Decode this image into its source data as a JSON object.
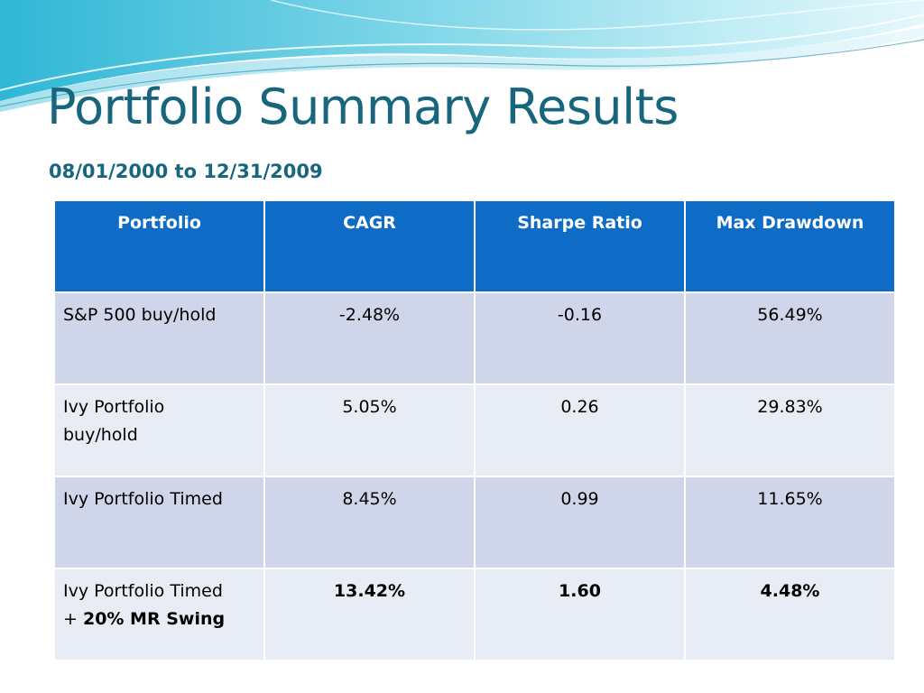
{
  "slide": {
    "title": "Portfolio Summary Results",
    "subtitle": "08/01/2000 to 12/31/2009"
  },
  "table": {
    "headers": [
      "Portfolio",
      "CAGR",
      "Sharpe Ratio",
      "Max Drawdown"
    ],
    "rows": [
      {
        "name": "S&P 500 buy/hold",
        "cagr": "-2.48%",
        "sharpe": "-0.16",
        "max_drawdown": "56.49%"
      },
      {
        "name_line1": "Ivy Portfolio",
        "name_line2": "buy/hold",
        "cagr": "5.05%",
        "sharpe": "0.26",
        "max_drawdown": "29.83%"
      },
      {
        "name": "Ivy Portfolio Timed",
        "cagr": "8.45%",
        "sharpe": "0.99",
        "max_drawdown": "11.65%"
      },
      {
        "name_line1": "Ivy Portfolio Timed",
        "name_line2_prefix": "+ ",
        "name_line2_bold": "20% MR Swing",
        "cagr": "13.42%",
        "sharpe": "1.60",
        "max_drawdown": "4.48%"
      }
    ]
  },
  "colors": {
    "title": "#17667d",
    "header_bg": "#0e6bc6",
    "row_odd_bg": "#cfd6e9",
    "row_even_bg": "#e8ecf5"
  }
}
